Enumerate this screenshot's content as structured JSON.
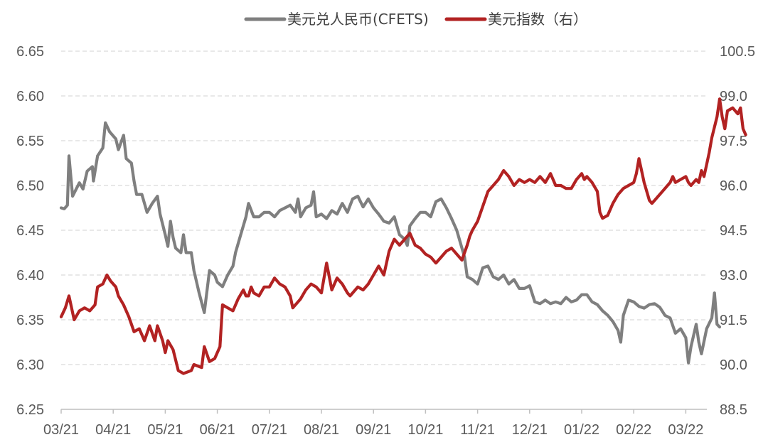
{
  "chart_data": {
    "type": "line",
    "title": "",
    "grid": true,
    "legend_position": "top-center",
    "x_ticks": [
      "03/21",
      "04/21",
      "05/21",
      "06/21",
      "07/21",
      "08/21",
      "09/21",
      "10/21",
      "11/21",
      "12/21",
      "01/22",
      "02/22",
      "03/22"
    ],
    "y_left": {
      "min": 6.25,
      "max": 6.65,
      "ticks": [
        "6.25",
        "6.30",
        "6.35",
        "6.40",
        "6.45",
        "6.50",
        "6.55",
        "6.60",
        "6.65"
      ]
    },
    "y_right": {
      "min": 88.5,
      "max": 100.5,
      "ticks": [
        "88.5",
        "90.0",
        "91.5",
        "93.0",
        "94.5",
        "96.0",
        "97.5",
        "99.0",
        "100.5"
      ]
    },
    "series": [
      {
        "name": "美元兑人民币(CFETS)",
        "axis": "left",
        "color": "#7f7f7f",
        "points": [
          [
            0.0,
            6.475
          ],
          [
            0.06,
            6.474
          ],
          [
            0.12,
            6.478
          ],
          [
            0.15,
            6.533
          ],
          [
            0.22,
            6.488
          ],
          [
            0.35,
            6.503
          ],
          [
            0.42,
            6.496
          ],
          [
            0.5,
            6.516
          ],
          [
            0.6,
            6.521
          ],
          [
            0.62,
            6.505
          ],
          [
            0.7,
            6.533
          ],
          [
            0.8,
            6.542
          ],
          [
            0.85,
            6.57
          ],
          [
            0.93,
            6.56
          ],
          [
            1.05,
            6.552
          ],
          [
            1.1,
            6.54
          ],
          [
            1.2,
            6.556
          ],
          [
            1.25,
            6.53
          ],
          [
            1.35,
            6.525
          ],
          [
            1.4,
            6.505
          ],
          [
            1.45,
            6.49
          ],
          [
            1.55,
            6.49
          ],
          [
            1.65,
            6.47
          ],
          [
            1.75,
            6.48
          ],
          [
            1.85,
            6.488
          ],
          [
            1.9,
            6.468
          ],
          [
            2.0,
            6.445
          ],
          [
            2.05,
            6.432
          ],
          [
            2.1,
            6.46
          ],
          [
            2.15,
            6.442
          ],
          [
            2.2,
            6.43
          ],
          [
            2.3,
            6.425
          ],
          [
            2.35,
            6.445
          ],
          [
            2.4,
            6.425
          ],
          [
            2.5,
            6.425
          ],
          [
            2.55,
            6.405
          ],
          [
            2.65,
            6.38
          ],
          [
            2.75,
            6.358
          ],
          [
            2.85,
            6.405
          ],
          [
            2.95,
            6.4
          ],
          [
            3.0,
            6.392
          ],
          [
            3.1,
            6.387
          ],
          [
            3.2,
            6.4
          ],
          [
            3.3,
            6.41
          ],
          [
            3.35,
            6.425
          ],
          [
            3.45,
            6.445
          ],
          [
            3.55,
            6.465
          ],
          [
            3.6,
            6.48
          ],
          [
            3.7,
            6.465
          ],
          [
            3.8,
            6.465
          ],
          [
            3.9,
            6.47
          ],
          [
            4.0,
            6.47
          ],
          [
            4.1,
            6.465
          ],
          [
            4.2,
            6.472
          ],
          [
            4.3,
            6.475
          ],
          [
            4.4,
            6.478
          ],
          [
            4.5,
            6.47
          ],
          [
            4.55,
            6.485
          ],
          [
            4.6,
            6.465
          ],
          [
            4.7,
            6.475
          ],
          [
            4.8,
            6.478
          ],
          [
            4.85,
            6.493
          ],
          [
            4.9,
            6.465
          ],
          [
            5.0,
            6.468
          ],
          [
            5.1,
            6.463
          ],
          [
            5.2,
            6.472
          ],
          [
            5.3,
            6.468
          ],
          [
            5.4,
            6.48
          ],
          [
            5.5,
            6.47
          ],
          [
            5.6,
            6.485
          ],
          [
            5.7,
            6.488
          ],
          [
            5.8,
            6.476
          ],
          [
            5.9,
            6.485
          ],
          [
            6.0,
            6.475
          ],
          [
            6.1,
            6.468
          ],
          [
            6.2,
            6.46
          ],
          [
            6.3,
            6.458
          ],
          [
            6.4,
            6.465
          ],
          [
            6.5,
            6.445
          ],
          [
            6.6,
            6.44
          ],
          [
            6.65,
            6.433
          ],
          [
            6.7,
            6.455
          ],
          [
            6.8,
            6.463
          ],
          [
            6.9,
            6.47
          ],
          [
            7.0,
            6.47
          ],
          [
            7.1,
            6.465
          ],
          [
            7.2,
            6.482
          ],
          [
            7.3,
            6.485
          ],
          [
            7.4,
            6.475
          ],
          [
            7.5,
            6.463
          ],
          [
            7.6,
            6.45
          ],
          [
            7.7,
            6.43
          ],
          [
            7.75,
            6.42
          ],
          [
            7.8,
            6.398
          ],
          [
            7.9,
            6.395
          ],
          [
            8.0,
            6.39
          ],
          [
            8.1,
            6.408
          ],
          [
            8.2,
            6.41
          ],
          [
            8.3,
            6.398
          ],
          [
            8.4,
            6.395
          ],
          [
            8.5,
            6.4
          ],
          [
            8.6,
            6.39
          ],
          [
            8.7,
            6.395
          ],
          [
            8.8,
            6.385
          ],
          [
            8.9,
            6.385
          ],
          [
            9.0,
            6.388
          ],
          [
            9.1,
            6.37
          ],
          [
            9.2,
            6.368
          ],
          [
            9.3,
            6.372
          ],
          [
            9.4,
            6.368
          ],
          [
            9.5,
            6.37
          ],
          [
            9.6,
            6.368
          ],
          [
            9.7,
            6.375
          ],
          [
            9.8,
            6.37
          ],
          [
            9.9,
            6.372
          ],
          [
            10.0,
            6.378
          ],
          [
            10.1,
            6.378
          ],
          [
            10.2,
            6.37
          ],
          [
            10.3,
            6.367
          ],
          [
            10.4,
            6.36
          ],
          [
            10.5,
            6.355
          ],
          [
            10.6,
            6.348
          ],
          [
            10.7,
            6.338
          ],
          [
            10.75,
            6.325
          ],
          [
            10.8,
            6.355
          ],
          [
            10.9,
            6.372
          ],
          [
            11.0,
            6.37
          ],
          [
            11.1,
            6.365
          ],
          [
            11.2,
            6.363
          ],
          [
            11.3,
            6.367
          ],
          [
            11.4,
            6.368
          ],
          [
            11.5,
            6.364
          ],
          [
            11.6,
            6.355
          ],
          [
            11.7,
            6.352
          ],
          [
            11.8,
            6.335
          ],
          [
            11.9,
            6.34
          ],
          [
            12.0,
            6.33
          ],
          [
            12.05,
            6.302
          ],
          [
            12.1,
            6.32
          ],
          [
            12.2,
            6.345
          ],
          [
            12.25,
            6.325
          ],
          [
            12.3,
            6.312
          ],
          [
            12.4,
            6.34
          ],
          [
            12.5,
            6.352
          ],
          [
            12.55,
            6.38
          ],
          [
            12.6,
            6.345
          ],
          [
            12.65,
            6.342
          ]
        ]
      },
      {
        "name": "美元指数（右）",
        "axis": "right",
        "color": "#b22222",
        "points": [
          [
            0.0,
            91.6
          ],
          [
            0.08,
            91.9
          ],
          [
            0.15,
            92.3
          ],
          [
            0.25,
            91.5
          ],
          [
            0.35,
            91.8
          ],
          [
            0.45,
            91.9
          ],
          [
            0.55,
            91.8
          ],
          [
            0.65,
            92.0
          ],
          [
            0.7,
            92.6
          ],
          [
            0.8,
            92.7
          ],
          [
            0.88,
            93.0
          ],
          [
            0.95,
            92.8
          ],
          [
            1.05,
            92.6
          ],
          [
            1.1,
            92.3
          ],
          [
            1.2,
            92.0
          ],
          [
            1.3,
            91.6
          ],
          [
            1.4,
            91.1
          ],
          [
            1.5,
            91.2
          ],
          [
            1.55,
            91.0
          ],
          [
            1.6,
            90.8
          ],
          [
            1.7,
            91.3
          ],
          [
            1.8,
            90.8
          ],
          [
            1.85,
            91.3
          ],
          [
            1.95,
            90.8
          ],
          [
            2.0,
            90.4
          ],
          [
            2.05,
            90.8
          ],
          [
            2.15,
            90.5
          ],
          [
            2.25,
            89.8
          ],
          [
            2.35,
            89.7
          ],
          [
            2.5,
            89.8
          ],
          [
            2.55,
            90.0
          ],
          [
            2.7,
            89.9
          ],
          [
            2.75,
            90.6
          ],
          [
            2.85,
            90.1
          ],
          [
            2.95,
            90.2
          ],
          [
            3.05,
            90.6
          ],
          [
            3.1,
            92.0
          ],
          [
            3.2,
            91.9
          ],
          [
            3.3,
            91.8
          ],
          [
            3.4,
            92.2
          ],
          [
            3.5,
            92.5
          ],
          [
            3.55,
            92.3
          ],
          [
            3.6,
            92.3
          ],
          [
            3.65,
            92.6
          ],
          [
            3.7,
            92.4
          ],
          [
            3.8,
            92.3
          ],
          [
            3.9,
            92.6
          ],
          [
            4.0,
            92.6
          ],
          [
            4.1,
            92.9
          ],
          [
            4.2,
            92.7
          ],
          [
            4.3,
            92.6
          ],
          [
            4.4,
            92.3
          ],
          [
            4.45,
            91.9
          ],
          [
            4.5,
            92.0
          ],
          [
            4.6,
            92.2
          ],
          [
            4.7,
            92.5
          ],
          [
            4.8,
            92.7
          ],
          [
            4.9,
            92.6
          ],
          [
            5.0,
            92.4
          ],
          [
            5.1,
            93.4
          ],
          [
            5.2,
            92.5
          ],
          [
            5.3,
            92.9
          ],
          [
            5.4,
            92.7
          ],
          [
            5.5,
            92.4
          ],
          [
            5.55,
            92.3
          ],
          [
            5.6,
            92.4
          ],
          [
            5.7,
            92.6
          ],
          [
            5.8,
            92.5
          ],
          [
            5.9,
            92.7
          ],
          [
            6.0,
            93.0
          ],
          [
            6.1,
            93.3
          ],
          [
            6.2,
            93.0
          ],
          [
            6.3,
            93.8
          ],
          [
            6.4,
            94.2
          ],
          [
            6.5,
            94.0
          ],
          [
            6.6,
            94.2
          ],
          [
            6.7,
            94.4
          ],
          [
            6.8,
            94.0
          ],
          [
            6.9,
            93.9
          ],
          [
            7.0,
            93.7
          ],
          [
            7.1,
            93.6
          ],
          [
            7.2,
            93.4
          ],
          [
            7.3,
            93.6
          ],
          [
            7.4,
            93.8
          ],
          [
            7.5,
            93.9
          ],
          [
            7.6,
            93.7
          ],
          [
            7.7,
            93.5
          ],
          [
            7.8,
            94.0
          ],
          [
            7.85,
            94.3
          ],
          [
            7.9,
            94.5
          ],
          [
            8.0,
            94.8
          ],
          [
            8.1,
            95.3
          ],
          [
            8.2,
            95.8
          ],
          [
            8.3,
            96.0
          ],
          [
            8.4,
            96.2
          ],
          [
            8.5,
            96.5
          ],
          [
            8.6,
            96.3
          ],
          [
            8.7,
            96.0
          ],
          [
            8.8,
            96.2
          ],
          [
            8.9,
            96.1
          ],
          [
            9.0,
            96.2
          ],
          [
            9.1,
            96.1
          ],
          [
            9.2,
            96.3
          ],
          [
            9.3,
            96.1
          ],
          [
            9.4,
            96.4
          ],
          [
            9.5,
            96.0
          ],
          [
            9.6,
            96.0
          ],
          [
            9.7,
            95.9
          ],
          [
            9.8,
            95.9
          ],
          [
            9.9,
            96.2
          ],
          [
            10.0,
            96.4
          ],
          [
            10.05,
            96.2
          ],
          [
            10.1,
            96.3
          ],
          [
            10.2,
            96.1
          ],
          [
            10.3,
            95.8
          ],
          [
            10.35,
            95.1
          ],
          [
            10.4,
            94.9
          ],
          [
            10.5,
            95.0
          ],
          [
            10.6,
            95.4
          ],
          [
            10.7,
            95.7
          ],
          [
            10.8,
            95.9
          ],
          [
            10.9,
            96.0
          ],
          [
            11.0,
            96.1
          ],
          [
            11.05,
            96.4
          ],
          [
            11.1,
            96.9
          ],
          [
            11.15,
            96.5
          ],
          [
            11.2,
            96.1
          ],
          [
            11.25,
            95.8
          ],
          [
            11.3,
            95.5
          ],
          [
            11.35,
            95.4
          ],
          [
            11.4,
            95.5
          ],
          [
            11.5,
            95.7
          ],
          [
            11.6,
            95.9
          ],
          [
            11.7,
            96.1
          ],
          [
            11.75,
            96.3
          ],
          [
            11.8,
            96.1
          ],
          [
            11.9,
            96.2
          ],
          [
            12.0,
            96.3
          ],
          [
            12.05,
            96.1
          ],
          [
            12.1,
            96.0
          ],
          [
            12.2,
            96.2
          ],
          [
            12.25,
            96.1
          ],
          [
            12.3,
            96.5
          ],
          [
            12.35,
            96.3
          ],
          [
            12.4,
            96.7
          ],
          [
            12.45,
            97.1
          ],
          [
            12.5,
            97.6
          ],
          [
            12.6,
            98.3
          ],
          [
            12.65,
            98.9
          ],
          [
            12.7,
            98.3
          ],
          [
            12.75,
            97.9
          ],
          [
            12.8,
            98.5
          ],
          [
            12.9,
            98.6
          ],
          [
            13.0,
            98.4
          ],
          [
            13.05,
            98.6
          ],
          [
            13.1,
            97.9
          ],
          [
            13.15,
            97.7
          ]
        ]
      }
    ]
  }
}
